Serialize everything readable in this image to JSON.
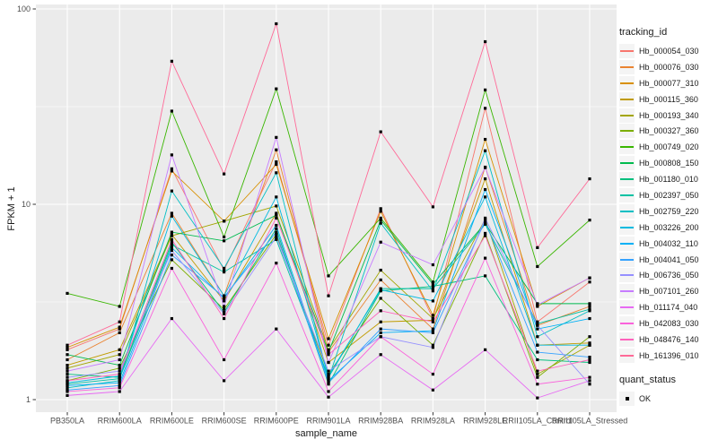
{
  "chart_data": {
    "type": "line",
    "title": "",
    "xlabel": "sample_name",
    "ylabel": "FPKM + 1",
    "y_scale": "log10",
    "ylim": [
      1,
      100
    ],
    "y_ticks": [
      1,
      10,
      100
    ],
    "y_tick_labels": [
      "1",
      "10",
      "100"
    ],
    "grid": true,
    "legend_position": "right",
    "colors": {
      "panel_background": "#EBEBEB",
      "grid": "#FFFFFF",
      "point": "#000000",
      "axis_text": "#4D4D4D",
      "tick_mark": "#333333",
      "legend_key_background": "#F4F4F4"
    },
    "legend": {
      "series_title": "tracking_id",
      "status_title": "quant_status",
      "status_label": "OK"
    },
    "categories": [
      "PB350LA",
      "RRIM600LA",
      "RRIM600LE",
      "RRIM600SE",
      "RRIM600PE",
      "RRIM901LA",
      "RRIM928BA",
      "RRIM928LA",
      "RRIM928LE",
      "RRII105LA_Control",
      "RRII105LA_Stressed"
    ],
    "series": [
      {
        "name": "Hb_000054_030",
        "color": "#F8766D",
        "values": [
          1.8,
          2.3,
          15.2,
          4.6,
          16.5,
          1.9,
          9.5,
          2.6,
          31,
          2.5,
          4.0
        ]
      },
      {
        "name": "Hb_000076_030",
        "color": "#EA8331",
        "values": [
          1.6,
          2.2,
          9.0,
          3.4,
          19,
          1.75,
          4.1,
          2.3,
          15.5,
          2.4,
          3.0
        ]
      },
      {
        "name": "Hb_000077_310",
        "color": "#D89000",
        "values": [
          1.85,
          2.35,
          14.8,
          8.2,
          16,
          2.05,
          9.2,
          2.7,
          21.5,
          3.0,
          4.2
        ]
      },
      {
        "name": "Hb_000115_360",
        "color": "#C09B00",
        "values": [
          1.5,
          1.8,
          7.0,
          3.2,
          9.0,
          1.55,
          2.5,
          2.55,
          13.5,
          1.9,
          1.95
        ]
      },
      {
        "name": "Hb_000193_340",
        "color": "#A3A500",
        "values": [
          1.45,
          1.7,
          6.9,
          8.2,
          9.8,
          1.8,
          4.6,
          2.6,
          8.4,
          1.35,
          1.9
        ]
      },
      {
        "name": "Hb_000327_360",
        "color": "#7CAE00",
        "values": [
          1.25,
          1.45,
          5.2,
          2.9,
          7.0,
          1.35,
          3.3,
          1.9,
          7.1,
          1.3,
          2.1
        ]
      },
      {
        "name": "Hb_000749_020",
        "color": "#39B600",
        "values": [
          3.5,
          3.0,
          30,
          6.8,
          39,
          4.3,
          8.5,
          4.0,
          38.5,
          4.8,
          8.3
        ]
      },
      {
        "name": "Hb_000808_150",
        "color": "#00BB4E",
        "values": [
          1.7,
          1.5,
          7.2,
          6.5,
          8.8,
          1.75,
          8.3,
          3.9,
          8.0,
          3.1,
          3.1
        ]
      },
      {
        "name": "Hb_001180_010",
        "color": "#00BF7D",
        "values": [
          1.35,
          1.3,
          6.4,
          2.8,
          7.5,
          1.2,
          3.6,
          3.8,
          4.3,
          1.6,
          1.55
        ]
      },
      {
        "name": "Hb_002397_050",
        "color": "#00C1A3",
        "values": [
          1.2,
          1.28,
          6.2,
          4.5,
          6.6,
          1.3,
          3.7,
          3.7,
          7.9,
          2.45,
          2.9
        ]
      },
      {
        "name": "Hb_002759_220",
        "color": "#00BFC4",
        "values": [
          1.15,
          1.25,
          11.7,
          4.7,
          14.5,
          1.28,
          8.0,
          3.6,
          18.8,
          2.1,
          2.85
        ]
      },
      {
        "name": "Hb_003226_200",
        "color": "#00BAE0",
        "values": [
          1.22,
          1.32,
          8.7,
          3.4,
          10.9,
          1.32,
          3.65,
          3.2,
          10.9,
          1.9,
          1.9
        ]
      },
      {
        "name": "Hb_004032_110",
        "color": "#00B0F6",
        "values": [
          1.18,
          1.22,
          6.0,
          3.3,
          7.8,
          1.25,
          2.2,
          2.25,
          11.9,
          2.3,
          2.6
        ]
      },
      {
        "name": "Hb_004041_050",
        "color": "#35A2FF",
        "values": [
          1.12,
          1.18,
          5.5,
          3.35,
          7.2,
          1.22,
          2.3,
          2.2,
          8.2,
          1.75,
          1.65
        ]
      },
      {
        "name": "Hb_006736_050",
        "color": "#9590FF",
        "values": [
          1.3,
          1.4,
          5.8,
          2.75,
          6.8,
          1.4,
          2.1,
          1.85,
          8.5,
          2.4,
          1.2
        ]
      },
      {
        "name": "Hb_007101_260",
        "color": "#C77CFF",
        "values": [
          1.4,
          1.6,
          17.9,
          3.0,
          22,
          1.55,
          6.4,
          4.9,
          15.4,
          3.05,
          4.2
        ]
      },
      {
        "name": "Hb_011174_040",
        "color": "#E76BF3",
        "values": [
          1.05,
          1.1,
          2.6,
          1.25,
          2.3,
          1.03,
          1.7,
          1.12,
          1.8,
          1.02,
          1.25
        ]
      },
      {
        "name": "Hb_042083_030",
        "color": "#FA62DB",
        "values": [
          1.1,
          1.15,
          4.7,
          1.6,
          5.0,
          1.1,
          2.1,
          1.35,
          5.3,
          1.2,
          1.3
        ]
      },
      {
        "name": "Hb_048476_140",
        "color": "#FF62BC",
        "values": [
          1.25,
          1.35,
          6.6,
          2.6,
          8.5,
          1.7,
          2.85,
          2.5,
          6.9,
          1.4,
          1.6
        ]
      },
      {
        "name": "Hb_161396_010",
        "color": "#FF6A98",
        "values": [
          1.9,
          2.5,
          54,
          14.3,
          84,
          3.4,
          23.5,
          9.7,
          68,
          6.0,
          13.5
        ]
      }
    ]
  }
}
